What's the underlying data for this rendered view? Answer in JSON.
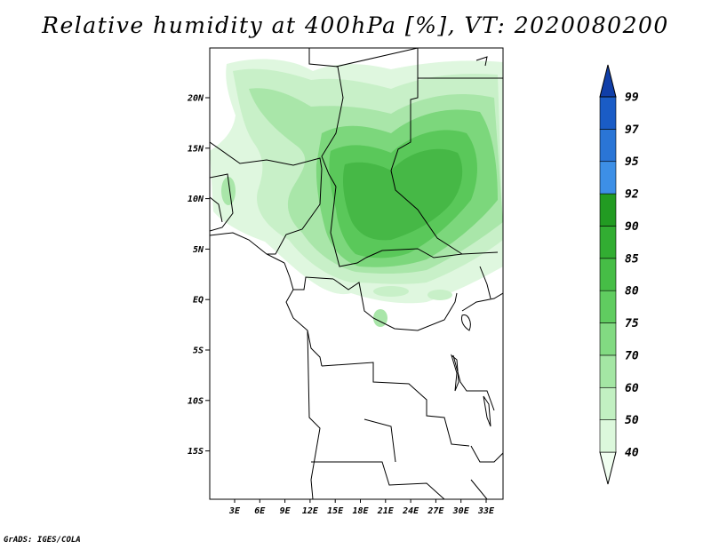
{
  "title": "Relative humidity at 400hPa [%], VT: 2020080200",
  "footer": "GrADS: IGES/COLA",
  "map": {
    "lon_labels": [
      "3E",
      "6E",
      "9E",
      "12E",
      "15E",
      "18E",
      "21E",
      "24E",
      "27E",
      "30E",
      "33E"
    ],
    "lat_labels": [
      "20N",
      "15N",
      "10N",
      "5N",
      "EQ",
      "5S",
      "10S",
      "15S"
    ]
  },
  "colorbar": {
    "levels": [
      "40",
      "50",
      "60",
      "70",
      "75",
      "80",
      "85",
      "90",
      "92",
      "95",
      "97",
      "99"
    ],
    "colors": [
      "#f0fef0",
      "#dcf8dc",
      "#c2f0c2",
      "#a4e6a4",
      "#82da82",
      "#60cc60",
      "#46bd46",
      "#32ad32",
      "#229b22",
      "#3d8fe6",
      "#2a75d6",
      "#1a5cc6",
      "#103ea8"
    ]
  },
  "chart_data": {
    "type": "heatmap",
    "variable": "Relative humidity at 400hPa [%]",
    "valid_time": "2020080200",
    "lon_range": [
      0,
      34.5
    ],
    "lat_range": [
      -20,
      24.5
    ],
    "contour_levels": [
      40,
      50,
      60,
      70,
      75,
      80,
      85,
      90,
      92,
      95,
      97,
      99
    ]
  }
}
